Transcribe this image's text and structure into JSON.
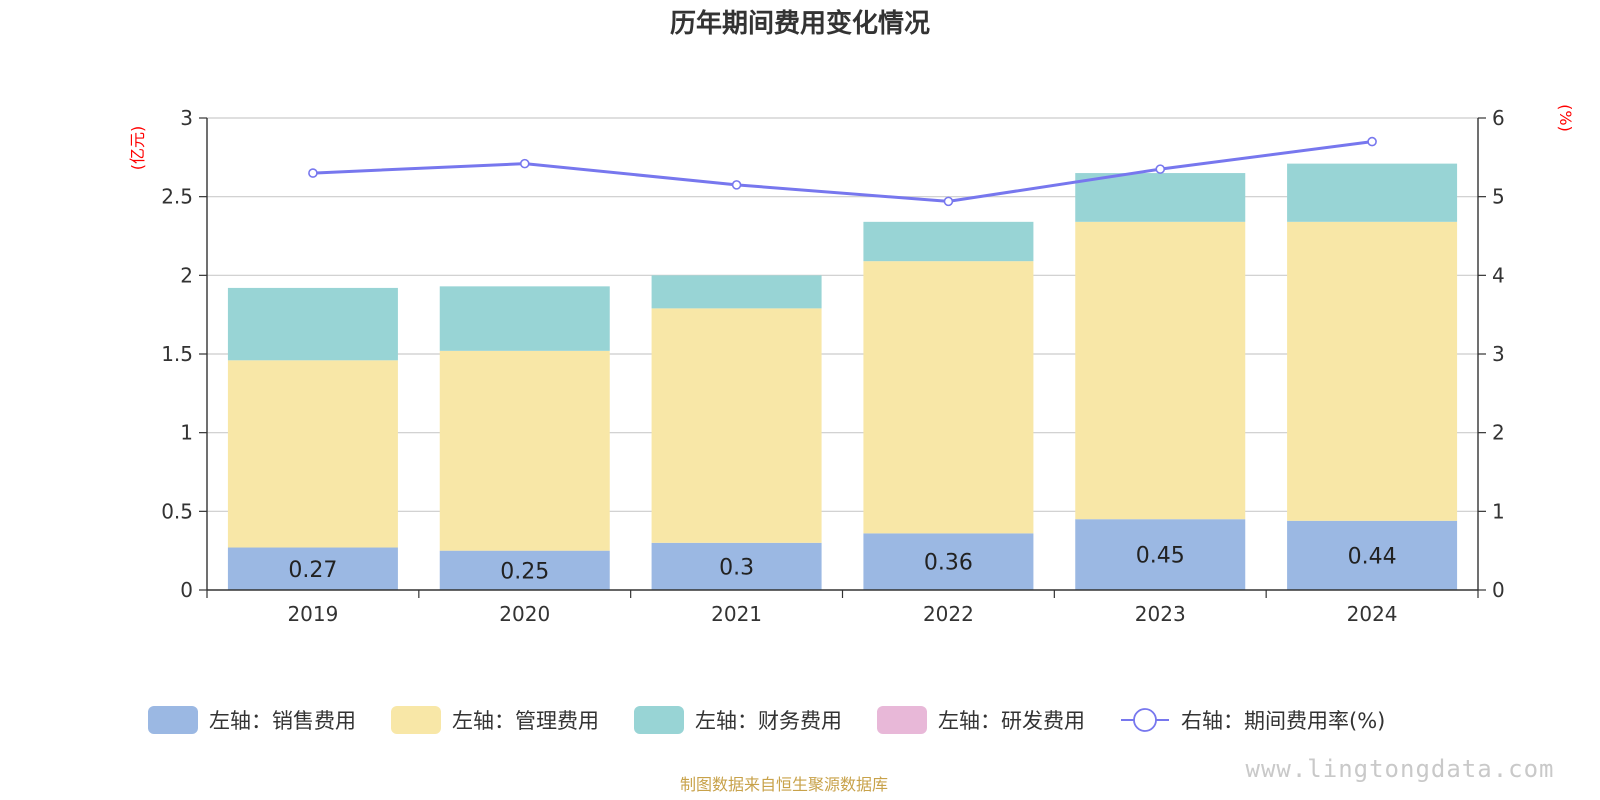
{
  "chart_data": {
    "type": "bar",
    "title": "历年期间费用变化情况",
    "categories": [
      "2019",
      "2020",
      "2021",
      "2022",
      "2023",
      "2024"
    ],
    "left_axis": {
      "unit": "(亿元)",
      "min": 0,
      "max": 3,
      "ticks": [
        "0",
        "0.5",
        "1",
        "1.5",
        "2",
        "2.5",
        "3"
      ]
    },
    "right_axis": {
      "unit": "(%)",
      "min": 0,
      "max": 6,
      "ticks": [
        "0",
        "1",
        "2",
        "3",
        "4",
        "5",
        "6"
      ]
    },
    "series": [
      {
        "name": "左轴：销售费用",
        "type": "bar",
        "stack": true,
        "color": "#9bb8e3",
        "show_labels": true,
        "values": [
          0.27,
          0.25,
          0.3,
          0.36,
          0.45,
          0.44
        ],
        "labels": [
          "0.27",
          "0.25",
          "0.3",
          "0.36",
          "0.45",
          "0.44"
        ]
      },
      {
        "name": "左轴：管理费用",
        "type": "bar",
        "stack": true,
        "color": "#f8e7a7",
        "show_labels": false,
        "values": [
          1.19,
          1.27,
          1.49,
          1.73,
          1.89,
          1.9
        ]
      },
      {
        "name": "左轴：财务费用",
        "type": "bar",
        "stack": true,
        "color": "#98d4d5",
        "show_labels": false,
        "values": [
          0.46,
          0.41,
          0.21,
          0.25,
          0.31,
          0.37
        ]
      },
      {
        "name": "左轴：研发费用",
        "type": "bar",
        "stack": true,
        "color": "#e8b8d8",
        "show_labels": false,
        "values": [
          0,
          0,
          0,
          0,
          0,
          0
        ]
      },
      {
        "name": "右轴：期间费用率(%)",
        "type": "line",
        "axis": "right",
        "color": "#7777ee",
        "values": [
          5.3,
          5.42,
          5.15,
          4.94,
          5.35,
          5.7
        ]
      }
    ],
    "grid": true,
    "legend_position": "bottom"
  },
  "footer": {
    "source": "制图数据来自恒生聚源数据库",
    "watermark": "www.lingtongdata.com"
  }
}
